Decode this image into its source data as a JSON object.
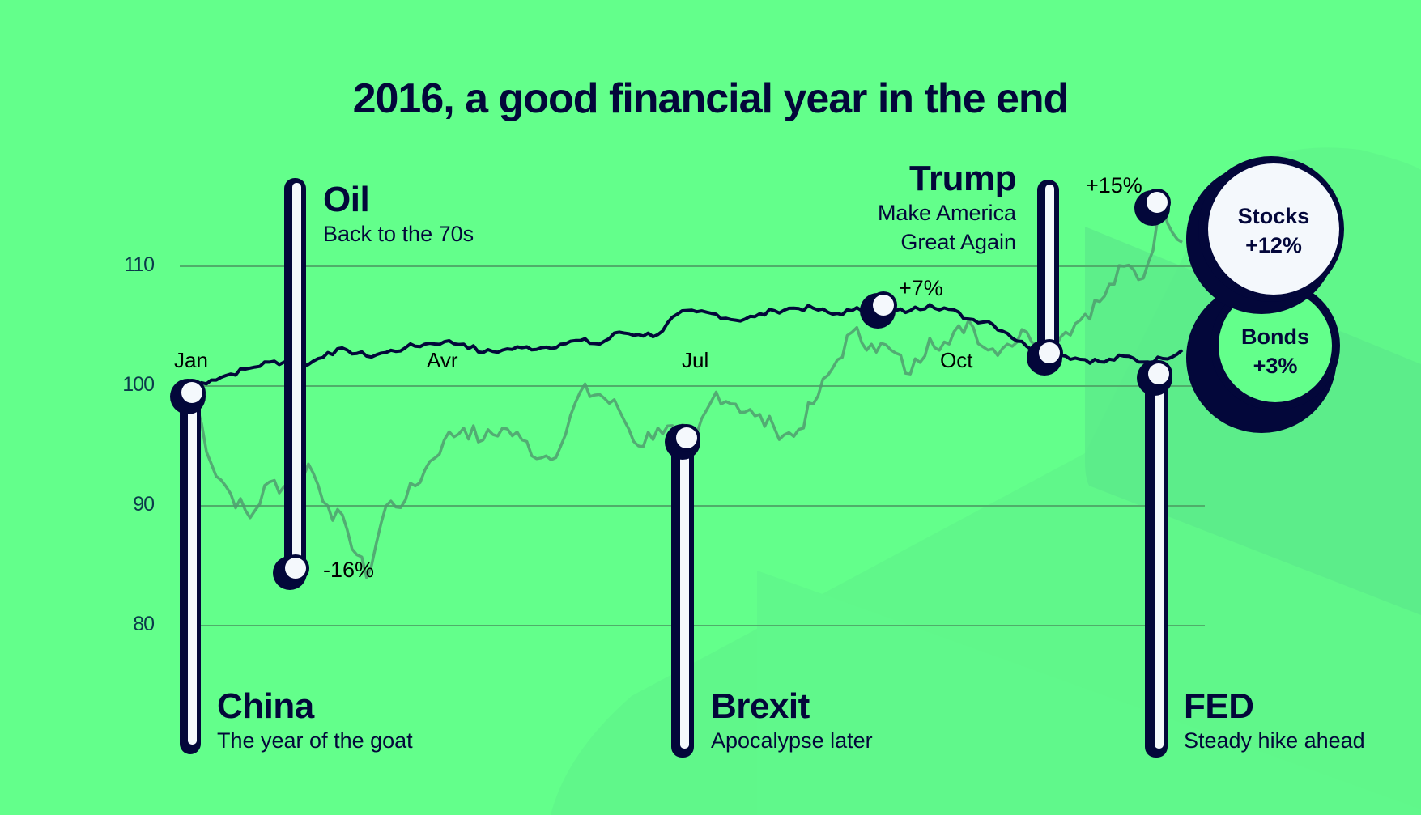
{
  "title": "2016, a good financial year in the end",
  "colors": {
    "background": "#63ff8b",
    "navy": "#03073a",
    "pin_fill": "#f4f8fc",
    "stocks_line": "#4f9d6e",
    "bonds_line": "#03073a",
    "gridline": "#4fae6a"
  },
  "y_axis": {
    "ticks": [
      "110",
      "100",
      "90",
      "80"
    ]
  },
  "x_axis": {
    "ticks": [
      "Jan",
      "Avr",
      "Jul",
      "Oct"
    ]
  },
  "events": {
    "china": {
      "title": "China",
      "subtitle": "The year of the goat"
    },
    "oil": {
      "title": "Oil",
      "subtitle": "Back to the 70s",
      "change": "-16%"
    },
    "brexit": {
      "title": "Brexit",
      "subtitle": "Apocalypse later"
    },
    "trump": {
      "title": "Trump",
      "subtitle_line1": "Make America",
      "subtitle_line2": "Great Again"
    },
    "fed": {
      "title": "FED",
      "subtitle": "Steady hike ahead"
    }
  },
  "annotations": {
    "peak_mid": "+7%",
    "peak_end": "+15%"
  },
  "legend": {
    "stocks": {
      "label": "Stocks",
      "value": "+12%"
    },
    "bonds": {
      "label": "Bonds",
      "value": "+3%"
    }
  },
  "chart_data": {
    "type": "line",
    "title": "2016, a good financial year in the end",
    "xlabel": "",
    "ylabel": "",
    "ylim": [
      75,
      115
    ],
    "yticks": [
      80,
      90,
      100,
      110
    ],
    "xticks": [
      "Jan",
      "Avr",
      "Jul",
      "Oct"
    ],
    "grid": true,
    "legend_position": "right",
    "x": [
      "W1",
      "W2",
      "W3",
      "W4",
      "W5",
      "W6",
      "W7",
      "W8",
      "W9",
      "W10",
      "W11",
      "W12",
      "W13",
      "W14",
      "W15",
      "W16",
      "W17",
      "W18",
      "W19",
      "W20",
      "W21",
      "W22",
      "W23",
      "W24",
      "W25",
      "W26",
      "W27",
      "W28",
      "W29",
      "W30",
      "W31",
      "W32",
      "W33",
      "W34",
      "W35",
      "W36",
      "W37",
      "W38",
      "W39",
      "W40",
      "W41",
      "W42",
      "W43",
      "W44",
      "W45",
      "W46",
      "W47",
      "W48",
      "W49",
      "W50",
      "W51",
      "W52"
    ],
    "series": [
      {
        "name": "Stocks",
        "final_change": "+12%",
        "values": [
          100,
          93.5,
          91,
          89,
          92,
          91.5,
          93.5,
          90,
          88,
          84,
          90,
          90.5,
          93,
          95.5,
          96.5,
          95.5,
          96.5,
          95.5,
          94,
          95,
          99.5,
          99.3,
          98,
          95,
          96.5,
          96,
          96,
          99.5,
          98.5,
          97.5,
          96.5,
          95.8,
          98.5,
          101.5,
          104.5,
          103.5,
          103,
          101,
          104,
          103.5,
          105.5,
          103,
          103.5,
          104.5,
          103.5,
          104.5,
          106,
          107.5,
          110,
          109,
          115,
          112
        ]
      },
      {
        "name": "Bonds",
        "final_change": "+3%",
        "values": [
          100,
          100.5,
          101,
          101.5,
          102,
          102,
          101.8,
          102.8,
          103,
          102.5,
          102.8,
          103.2,
          103.5,
          103.7,
          103.5,
          102.8,
          103,
          103.2,
          103.2,
          103.5,
          103.8,
          103.5,
          104.5,
          104.3,
          104.3,
          106,
          106.2,
          106,
          105.5,
          105.8,
          106.3,
          106.5,
          106.5,
          106,
          106.3,
          106.5,
          106.2,
          106.3,
          106.8,
          106.4,
          105.6,
          105.4,
          104.4,
          103.3,
          103,
          102.5,
          102.2,
          102,
          102.5,
          102,
          102.3,
          103
        ]
      }
    ],
    "events": [
      {
        "name": "China",
        "subtitle": "The year of the goat",
        "x_index": 0,
        "value": 100
      },
      {
        "name": "Oil",
        "subtitle": "Back to the 70s",
        "x_index": 9,
        "value": 84,
        "change": "-16%"
      },
      {
        "name": "Brexit",
        "subtitle": "Apocalypse later",
        "x_index": 25,
        "value": 95.5
      },
      {
        "name": "Trump",
        "subtitle": "Make America Great Again",
        "x_index": 44,
        "value": 102.5
      },
      {
        "name": "FED",
        "subtitle": "Steady hike ahead",
        "x_index": 49,
        "value": 101
      }
    ],
    "annotations": [
      {
        "text": "+7%",
        "series": "Bonds",
        "x_index": 36,
        "value": 106.5
      },
      {
        "text": "+15%",
        "series": "Stocks",
        "x_index": 49,
        "value": 115
      },
      {
        "text": "-16%",
        "series": "Stocks",
        "x_index": 9,
        "value": 84
      }
    ]
  }
}
